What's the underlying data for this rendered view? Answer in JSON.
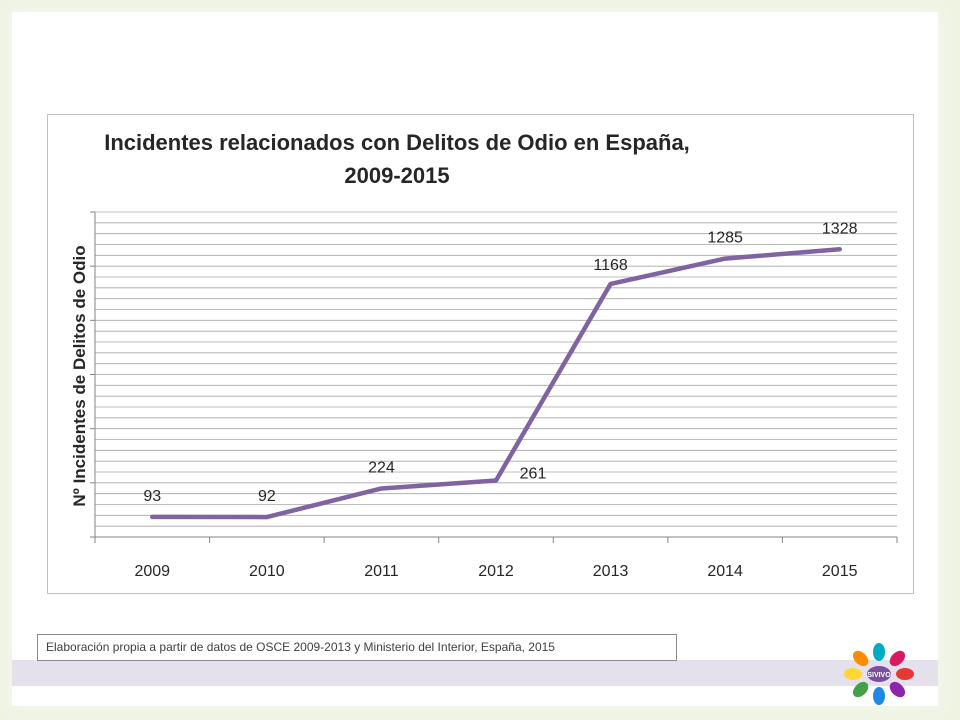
{
  "chart_data": {
    "type": "line",
    "title_lines": [
      "Incidentes relacionados con Delitos de Odio en España,",
      "2009-2015"
    ],
    "ylabel": "Nº Incidentes de Delitos de Odio",
    "xlabel": "",
    "categories": [
      "2009",
      "2010",
      "2011",
      "2012",
      "2013",
      "2014",
      "2015"
    ],
    "series": [
      {
        "values": [
          93,
          92,
          224,
          261,
          1168,
          1285,
          1328
        ],
        "color": "#8064a2"
      }
    ],
    "ylim": [
      0,
      1500
    ],
    "gridlines": true,
    "legend": "none",
    "data_labels": true
  },
  "footnote": "Elaboración propia a partir de datos de OSCE 2009-2013 y Ministerio del Interior, España, 2015",
  "logo": {
    "text": "SIVIVO",
    "colors": [
      "#e53935",
      "#8e24aa",
      "#1e88e5",
      "#43a047",
      "#fdd835",
      "#fb8c00",
      "#00acc1",
      "#d81b60"
    ]
  }
}
